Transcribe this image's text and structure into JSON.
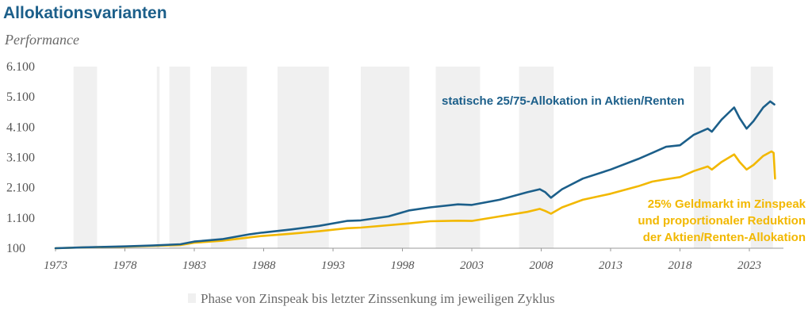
{
  "chart_data": {
    "type": "line",
    "title": "Allokationsvarianten",
    "ylabel": "Performance",
    "xlim": [
      1973,
      2025
    ],
    "ylim": [
      100,
      6100
    ],
    "yticks": [
      100,
      1100,
      2100,
      3100,
      4100,
      5100,
      6100
    ],
    "ytick_labels": [
      "100",
      "1.100",
      "2.100",
      "3.100",
      "4.100",
      "5.100",
      "6.100"
    ],
    "xticks": [
      1973,
      1978,
      1983,
      1988,
      1993,
      1998,
      2003,
      2008,
      2013,
      2018,
      2023
    ],
    "xtick_labels": [
      "1973",
      "1978",
      "1983",
      "1988",
      "1993",
      "1998",
      "2003",
      "2008",
      "2013",
      "2018",
      "2023"
    ],
    "shaded_phases": [
      [
        1974.3,
        1976.0
      ],
      [
        1980.3,
        1980.5
      ],
      [
        1981.2,
        1982.7
      ],
      [
        1984.2,
        1986.8
      ],
      [
        1989.0,
        1992.7
      ],
      [
        1995.0,
        1998.5
      ],
      [
        2000.4,
        2003.6
      ],
      [
        2006.4,
        2008.9
      ],
      [
        2019.0,
        2020.2
      ],
      [
        2023.1,
        2024.7
      ]
    ],
    "legend": {
      "label": "Phase von Zinspeak bis letzter Zinssenkung im jeweiligen Zyklus",
      "color": "#f0f0f0"
    },
    "series": [
      {
        "name": "statische 25/75-Allokation in Aktien/Renten",
        "color": "#1c5f8a",
        "label_lines": [
          "statische 25/75-Allokation in Aktien/Renten"
        ],
        "x": [
          1973,
          1975,
          1978,
          1980,
          1982,
          1983,
          1985,
          1987,
          1987.8,
          1988,
          1990,
          1992,
          1994,
          1995,
          1997,
          1998.5,
          2000,
          2002,
          2003,
          2005,
          2007,
          2007.9,
          2008.3,
          2008.7,
          2009.5,
          2011,
          2013,
          2015,
          2016,
          2017,
          2018,
          2019,
          2020,
          2020.3,
          2021,
          2021.9,
          2022.3,
          2022.8,
          2023.3,
          2024,
          2024.5,
          2024.8
        ],
        "values": [
          100,
          130,
          160,
          190,
          230,
          320,
          400,
          560,
          610,
          620,
          720,
          840,
          1000,
          1020,
          1150,
          1350,
          1450,
          1550,
          1530,
          1700,
          1950,
          2050,
          1950,
          1770,
          2050,
          2400,
          2700,
          3050,
          3250,
          3450,
          3500,
          3850,
          4050,
          3950,
          4350,
          4750,
          4400,
          4050,
          4300,
          4750,
          4950,
          4850
        ]
      },
      {
        "name": "25% Geldmarkt im Zinspeak und proportionaler Reduktion der Aktien/Renten-Allokation",
        "color": "#f2b800",
        "label_lines": [
          "25% Geldmarkt im Zinspeak",
          "und proportionaler Reduktion",
          "der Aktien/Renten-Allokation"
        ],
        "x": [
          1973,
          1975,
          1978,
          1980,
          1982,
          1983,
          1985,
          1987,
          1987.8,
          1988,
          1990,
          1992,
          1994,
          1995,
          1997,
          1998.5,
          2000,
          2002,
          2003,
          2005,
          2007,
          2007.9,
          2008.3,
          2008.7,
          2009.5,
          2011,
          2013,
          2015,
          2016,
          2017,
          2018,
          2019,
          2020,
          2020.3,
          2021,
          2021.9,
          2022.3,
          2022.8,
          2023.3,
          2024,
          2024.6,
          2024.75,
          2024.85
        ],
        "values": [
          100,
          125,
          150,
          175,
          205,
          280,
          345,
          460,
          500,
          510,
          580,
          660,
          760,
          780,
          860,
          920,
          990,
          1010,
          1000,
          1150,
          1300,
          1400,
          1330,
          1240,
          1450,
          1700,
          1900,
          2150,
          2300,
          2380,
          2450,
          2650,
          2800,
          2700,
          2950,
          3200,
          2950,
          2700,
          2850,
          3150,
          3300,
          3250,
          2400
        ]
      }
    ]
  }
}
